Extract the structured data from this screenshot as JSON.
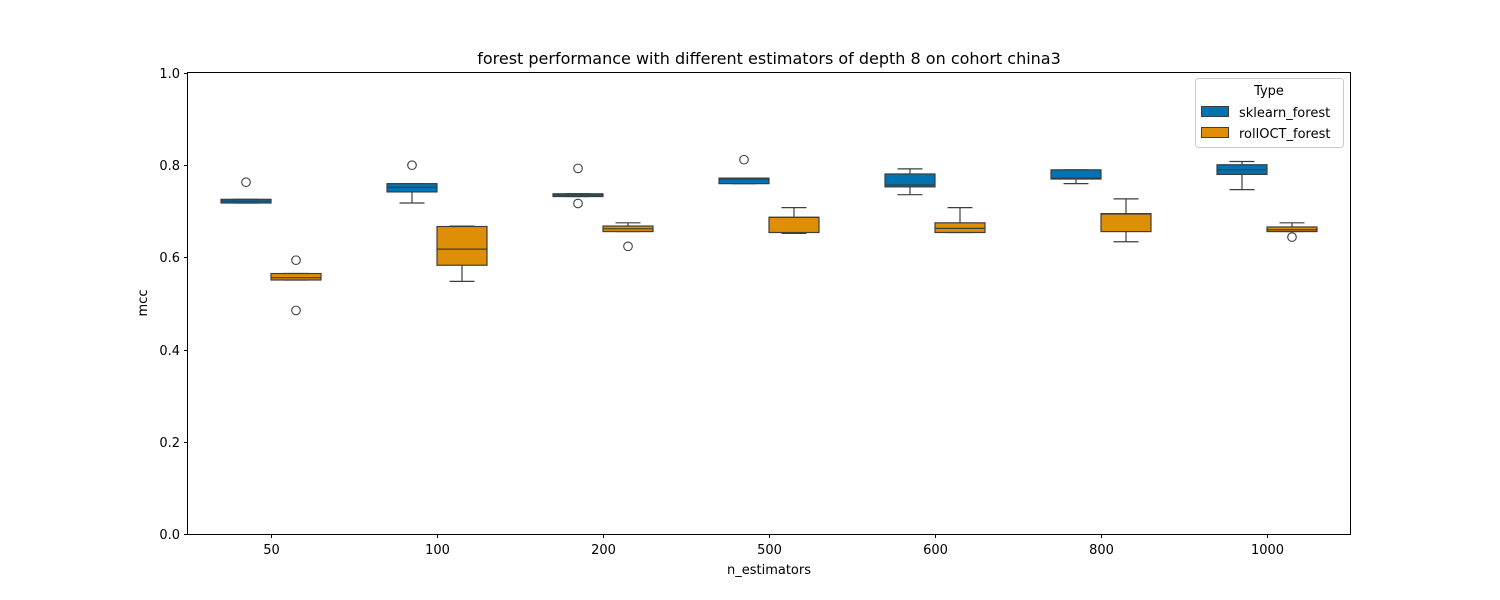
{
  "chart_data": {
    "type": "box",
    "title": "forest performance with different estimators of depth 8 on cohort china3",
    "xlabel": "n_estimators",
    "ylabel": "mcc",
    "ylim": [
      0.0,
      1.0
    ],
    "yticks": [
      "0.0",
      "0.2",
      "0.4",
      "0.6",
      "0.8",
      "1.0"
    ],
    "categories": [
      "50",
      "100",
      "200",
      "500",
      "600",
      "800",
      "1000"
    ],
    "grid": false,
    "legend": {
      "title": "Type",
      "position": "top-right"
    },
    "series": [
      {
        "name": "sklearn_forest",
        "color": "#0173b2",
        "boxes": [
          {
            "whislo": 0.718,
            "q1": 0.718,
            "med": 0.722,
            "q3": 0.726,
            "whishi": 0.726,
            "fliers": [
              0.763
            ]
          },
          {
            "whislo": 0.718,
            "q1": 0.742,
            "med": 0.752,
            "q3": 0.76,
            "whishi": 0.76,
            "fliers": [
              0.8
            ]
          },
          {
            "whislo": 0.732,
            "q1": 0.732,
            "med": 0.735,
            "q3": 0.738,
            "whishi": 0.738,
            "fliers": [
              0.793,
              0.717
            ]
          },
          {
            "whislo": 0.76,
            "q1": 0.76,
            "med": 0.77,
            "q3": 0.772,
            "whishi": 0.772,
            "fliers": [
              0.812
            ]
          },
          {
            "whislo": 0.736,
            "q1": 0.753,
            "med": 0.757,
            "q3": 0.781,
            "whishi": 0.792,
            "fliers": []
          },
          {
            "whislo": 0.76,
            "q1": 0.77,
            "med": 0.772,
            "q3": 0.79,
            "whishi": 0.79,
            "fliers": []
          },
          {
            "whislo": 0.747,
            "q1": 0.78,
            "med": 0.79,
            "q3": 0.801,
            "whishi": 0.808,
            "fliers": []
          }
        ]
      },
      {
        "name": "rollOCT_forest",
        "color": "#de8f05",
        "boxes": [
          {
            "whislo": 0.551,
            "q1": 0.551,
            "med": 0.556,
            "q3": 0.565,
            "whishi": 0.565,
            "fliers": [
              0.594,
              0.485
            ]
          },
          {
            "whislo": 0.548,
            "q1": 0.583,
            "med": 0.618,
            "q3": 0.667,
            "whishi": 0.668,
            "fliers": []
          },
          {
            "whislo": 0.656,
            "q1": 0.656,
            "med": 0.662,
            "q3": 0.668,
            "whishi": 0.675,
            "fliers": [
              0.624
            ]
          },
          {
            "whislo": 0.652,
            "q1": 0.654,
            "med": 0.687,
            "q3": 0.687,
            "whishi": 0.708,
            "fliers": []
          },
          {
            "whislo": 0.654,
            "q1": 0.654,
            "med": 0.663,
            "q3": 0.675,
            "whishi": 0.708,
            "fliers": []
          },
          {
            "whislo": 0.634,
            "q1": 0.656,
            "med": 0.694,
            "q3": 0.695,
            "whishi": 0.727,
            "fliers": []
          },
          {
            "whislo": 0.656,
            "q1": 0.656,
            "med": 0.66,
            "q3": 0.666,
            "whishi": 0.675,
            "fliers": [
              0.644
            ]
          }
        ]
      }
    ]
  }
}
